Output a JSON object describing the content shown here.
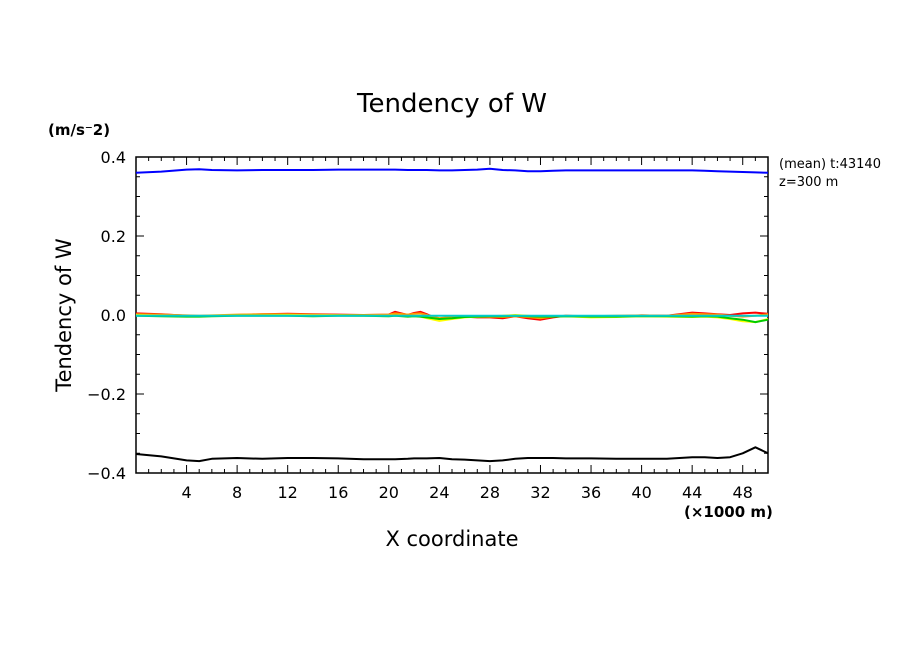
{
  "chart_data": {
    "type": "line",
    "title": "Tendency of W",
    "xlabel": "X coordinate",
    "ylabel": "Tendency of W",
    "y_units": "(m/s⁻2)",
    "x_units": "(×1000 m)",
    "annotation_line1": "(mean) t:43140",
    "annotation_line2": "z=300 m",
    "xlim": [
      0,
      50
    ],
    "ylim": [
      -0.4,
      0.4
    ],
    "x_ticks": [
      4,
      8,
      12,
      16,
      20,
      24,
      28,
      32,
      36,
      40,
      44,
      48
    ],
    "x_tick_labels": [
      "4",
      "8",
      "12",
      "16",
      "20",
      "24",
      "28",
      "32",
      "36",
      "40",
      "44",
      "48"
    ],
    "y_ticks": [
      -0.4,
      -0.2,
      0.0,
      0.2,
      0.4
    ],
    "y_tick_labels": [
      "−0.4",
      "−0.2",
      "0.0",
      "0.2",
      "0.4"
    ],
    "x": [
      0,
      2,
      4,
      5,
      6,
      8,
      10,
      12,
      14,
      16,
      18,
      20,
      20.5,
      21.5,
      22,
      22.5,
      23,
      24,
      25,
      26,
      27,
      28,
      29,
      30,
      31,
      32,
      33,
      34,
      36,
      38,
      40,
      42,
      44,
      45,
      46,
      47,
      48,
      49,
      50
    ],
    "series": [
      {
        "name": "blue",
        "color": "#0000ff",
        "values": [
          0.36,
          0.363,
          0.368,
          0.369,
          0.367,
          0.366,
          0.367,
          0.367,
          0.367,
          0.368,
          0.368,
          0.368,
          0.368,
          0.367,
          0.367,
          0.367,
          0.367,
          0.366,
          0.366,
          0.367,
          0.368,
          0.37,
          0.367,
          0.366,
          0.364,
          0.364,
          0.365,
          0.366,
          0.366,
          0.366,
          0.366,
          0.366,
          0.366,
          0.365,
          0.364,
          0.363,
          0.362,
          0.361,
          0.36
        ]
      },
      {
        "name": "black",
        "color": "#000000",
        "values": [
          -0.352,
          -0.358,
          -0.368,
          -0.37,
          -0.364,
          -0.362,
          -0.364,
          -0.362,
          -0.362,
          -0.363,
          -0.365,
          -0.365,
          -0.365,
          -0.364,
          -0.363,
          -0.363,
          -0.363,
          -0.362,
          -0.365,
          -0.366,
          -0.368,
          -0.37,
          -0.368,
          -0.364,
          -0.362,
          -0.362,
          -0.362,
          -0.363,
          -0.363,
          -0.364,
          -0.364,
          -0.364,
          -0.36,
          -0.36,
          -0.362,
          -0.36,
          -0.35,
          -0.335,
          -0.35
        ]
      },
      {
        "name": "red",
        "color": "#ff0000",
        "values": [
          0.004,
          0.002,
          -0.002,
          -0.003,
          -0.002,
          0.0,
          0.002,
          0.003,
          0.002,
          0.001,
          0.0,
          0.001,
          0.008,
          0.0,
          0.005,
          0.008,
          0.002,
          -0.012,
          -0.006,
          -0.004,
          -0.006,
          -0.006,
          -0.008,
          -0.003,
          -0.008,
          -0.012,
          -0.006,
          -0.002,
          -0.004,
          -0.003,
          -0.001,
          -0.002,
          0.006,
          0.004,
          0.002,
          0.0,
          0.004,
          0.006,
          0.003
        ]
      },
      {
        "name": "orange",
        "color": "#ff9900",
        "values": [
          0.002,
          0.001,
          -0.001,
          -0.002,
          -0.001,
          0.001,
          0.002,
          0.002,
          0.001,
          0.0,
          0.0,
          0.001,
          0.004,
          0.001,
          0.003,
          0.004,
          0.0,
          -0.008,
          -0.004,
          -0.003,
          -0.005,
          -0.004,
          -0.005,
          -0.003,
          -0.005,
          -0.008,
          -0.004,
          -0.002,
          -0.003,
          -0.002,
          -0.001,
          -0.002,
          0.003,
          0.002,
          0.001,
          -0.002,
          -0.004,
          -0.002,
          0.002
        ]
      },
      {
        "name": "yellow",
        "color": "#ffff00",
        "values": [
          0.0,
          -0.002,
          -0.003,
          -0.003,
          -0.002,
          -0.001,
          -0.001,
          0.0,
          -0.001,
          -0.001,
          -0.002,
          -0.002,
          -0.001,
          -0.003,
          -0.002,
          -0.004,
          -0.008,
          -0.015,
          -0.01,
          -0.006,
          -0.004,
          -0.003,
          -0.002,
          0.0,
          -0.002,
          -0.004,
          -0.003,
          -0.003,
          -0.006,
          -0.005,
          -0.003,
          -0.004,
          -0.005,
          -0.004,
          -0.006,
          -0.01,
          -0.016,
          -0.018,
          -0.01
        ]
      },
      {
        "name": "green",
        "color": "#00cc00",
        "values": [
          -0.002,
          -0.003,
          -0.004,
          -0.004,
          -0.003,
          -0.002,
          -0.002,
          -0.002,
          -0.003,
          -0.002,
          -0.002,
          -0.003,
          -0.002,
          -0.004,
          -0.003,
          -0.004,
          -0.006,
          -0.01,
          -0.008,
          -0.005,
          -0.004,
          -0.003,
          -0.003,
          -0.002,
          -0.003,
          -0.004,
          -0.004,
          -0.003,
          -0.004,
          -0.004,
          -0.003,
          -0.003,
          -0.004,
          -0.003,
          -0.004,
          -0.008,
          -0.012,
          -0.018,
          -0.012
        ]
      },
      {
        "name": "cyan",
        "color": "#00cccc",
        "values": [
          -0.002,
          -0.002,
          -0.002,
          -0.002,
          -0.002,
          -0.002,
          -0.002,
          -0.002,
          -0.002,
          -0.002,
          -0.002,
          -0.002,
          -0.002,
          -0.002,
          -0.002,
          -0.002,
          -0.002,
          -0.002,
          -0.002,
          -0.002,
          -0.002,
          -0.002,
          -0.002,
          -0.002,
          -0.002,
          -0.002,
          -0.002,
          -0.002,
          -0.002,
          -0.002,
          -0.002,
          -0.002,
          -0.002,
          -0.002,
          -0.002,
          -0.002,
          -0.002,
          -0.002,
          -0.002
        ]
      }
    ]
  }
}
